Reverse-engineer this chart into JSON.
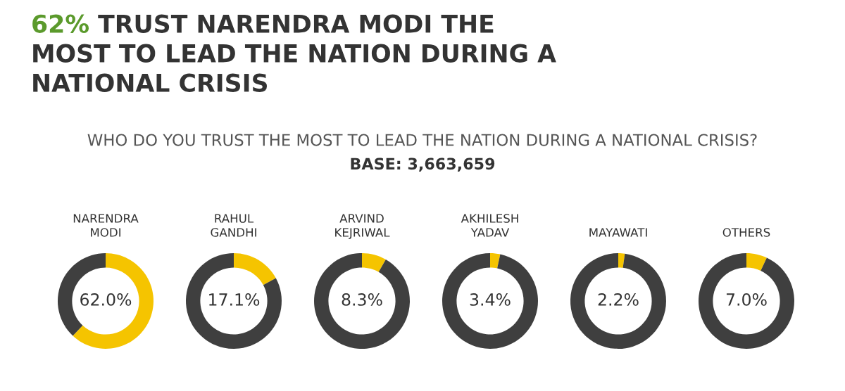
{
  "chart_data": [
    {
      "type": "other",
      "title": "62% TRUST NARENDRA MODI THE\nMOST TO LEAD THE NATION DURING A\nNATIONAL CRISIS",
      "subtitle": "WHO DO YOU TRUST THE MOST TO LEAD THE NATION DURING A NATIONAL CRISIS?",
      "annotations": [
        "BASE: 3,663,659"
      ]
    },
    {
      "type": "donut",
      "title": "NARENDRA MODI",
      "categories": [
        null,
        null
      ],
      "values": [
        62.0,
        38.0
      ],
      "colors": [
        "#f5c400",
        "#3f3f3f"
      ],
      "value_labels": [
        "62.0%",
        null
      ]
    },
    {
      "type": "donut",
      "title": "RAHUL GANDHI",
      "categories": [
        null,
        null
      ],
      "values": [
        17.1,
        82.9
      ],
      "colors": [
        "#f5c400",
        "#3f3f3f"
      ],
      "value_labels": [
        "17.1%",
        null
      ]
    },
    {
      "type": "donut",
      "title": "ARVIND KEJRIWAL",
      "categories": [
        null,
        null
      ],
      "values": [
        8.3,
        91.7
      ],
      "colors": [
        "#f5c400",
        "#3f3f3f"
      ],
      "value_labels": [
        "8.3%",
        null
      ]
    },
    {
      "type": "donut",
      "title": "AKHILESH YADAV",
      "categories": [
        null,
        null
      ],
      "values": [
        3.4,
        96.6
      ],
      "colors": [
        "#f5c400",
        "#3f3f3f"
      ],
      "value_labels": [
        "3.4%",
        null
      ]
    },
    {
      "type": "donut",
      "title": "MAYAWATI",
      "categories": [
        null,
        null
      ],
      "values": [
        2.2,
        97.8
      ],
      "colors": [
        "#f5c400",
        "#3f3f3f"
      ],
      "value_labels": [
        "2.2%",
        null
      ]
    },
    {
      "type": "donut",
      "title": "OTHERS",
      "categories": [
        null,
        null
      ],
      "values": [
        7.0,
        93.0
      ],
      "colors": [
        "#f5c400",
        "#3f3f3f"
      ],
      "value_labels": [
        "7.0%",
        null
      ]
    }
  ]
}
